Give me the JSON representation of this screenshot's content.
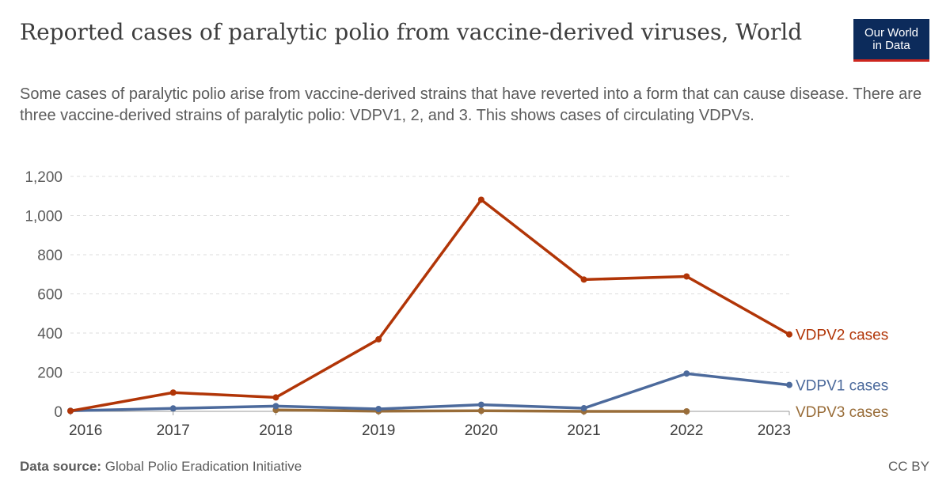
{
  "header": {
    "title": "Reported cases of paralytic polio from vaccine-derived viruses, World",
    "subtitle": "Some cases of paralytic polio arise from vaccine-derived strains that have reverted into a form that can cause disease. There are three vaccine-derived strains of paralytic polio: VDPV1, 2, and 3. This shows cases of circulating VDPVs.",
    "logo_line1": "Our World",
    "logo_line2": "in Data"
  },
  "footer": {
    "source_label": "Data source:",
    "source_text": "Global Polio Eradication Initiative",
    "license": "CC BY"
  },
  "colors": {
    "logo_bg": "#0c2b5b",
    "logo_accent": "#ce261e",
    "gridline": "#dddddd"
  },
  "chart_data": {
    "type": "line",
    "x_range": [
      2016,
      2023
    ],
    "ylim": [
      0,
      1200
    ],
    "y_ticks": [
      0,
      200,
      400,
      600,
      800,
      1000,
      1200
    ],
    "y_tick_labels": [
      "0",
      "200",
      "400",
      "600",
      "800",
      "1,000",
      "1,200"
    ],
    "x_ticks": [
      2016,
      2017,
      2018,
      2019,
      2020,
      2021,
      2022,
      2023
    ],
    "x_tick_labels": [
      "2016",
      "2017",
      "2018",
      "2019",
      "2020",
      "2021",
      "2022",
      "2023"
    ],
    "grid": "horizontal dashed",
    "legend": "labels at line ends",
    "series": [
      {
        "name": "VDPV2 cases",
        "color": "#b13507",
        "x": [
          2016,
          2017,
          2018,
          2019,
          2020,
          2021,
          2022,
          2023
        ],
        "values": [
          2,
          96,
          71,
          368,
          1081,
          673,
          689,
          393
        ]
      },
      {
        "name": "VDPV1 cases",
        "color": "#4c6a9c",
        "x": [
          2016,
          2017,
          2018,
          2019,
          2020,
          2021,
          2022,
          2023
        ],
        "values": [
          3,
          15,
          27,
          12,
          34,
          16,
          193,
          135
        ]
      },
      {
        "name": "VDPV3 cases",
        "color": "#996d39",
        "x": [
          2018,
          2019,
          2020,
          2021,
          2022
        ],
        "values": [
          7,
          1,
          3,
          0,
          0
        ]
      }
    ]
  }
}
